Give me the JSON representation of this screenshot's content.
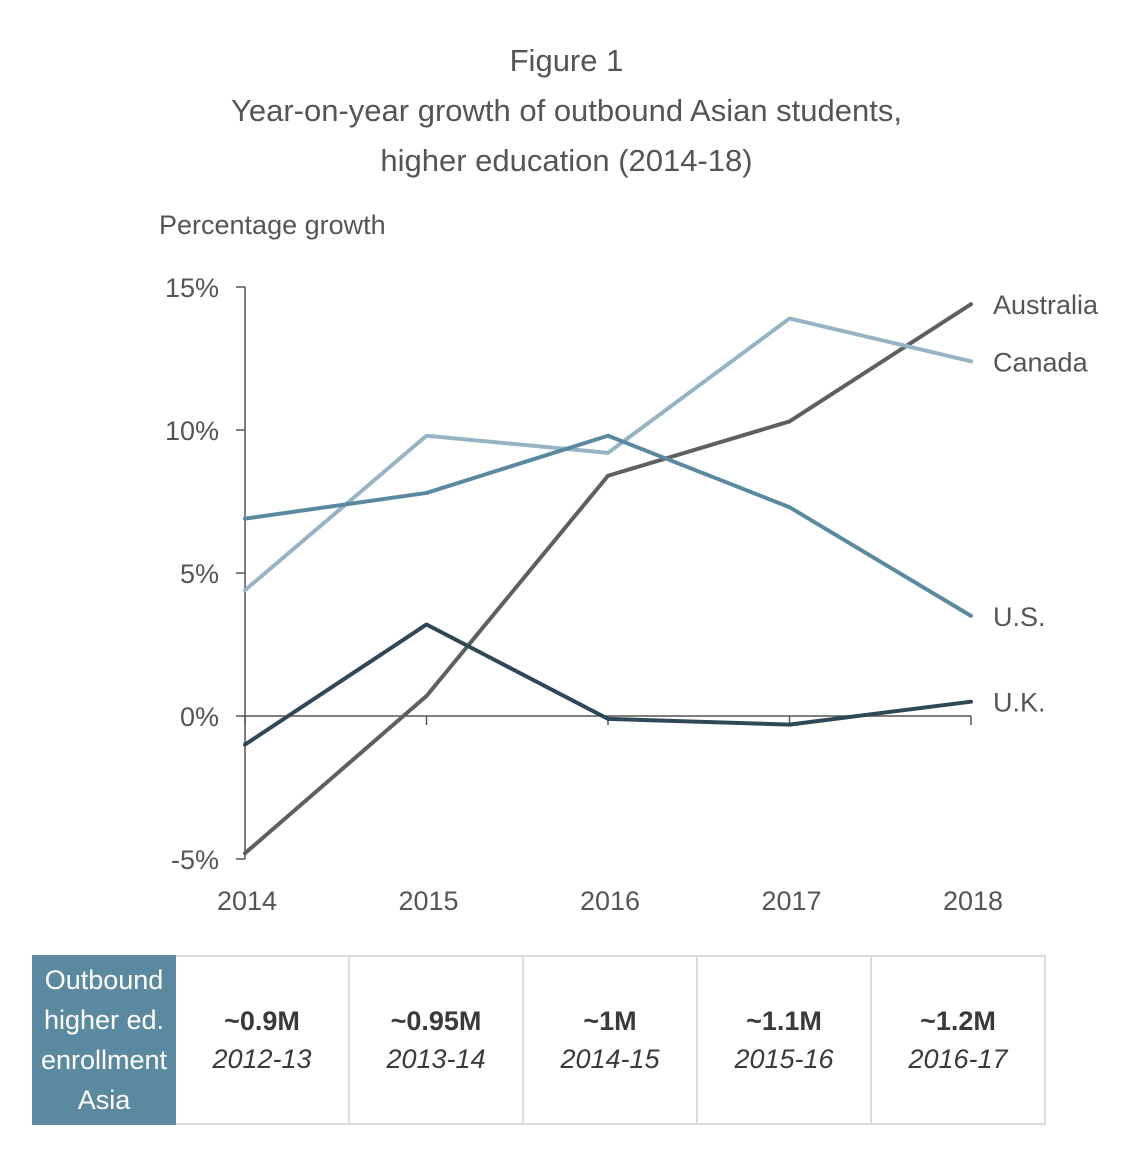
{
  "figure": {
    "label": "Figure 1",
    "title_line1": "Year-on-year growth of outbound Asian students,",
    "title_line2": "higher education (2014-18)"
  },
  "chart_data": {
    "type": "line",
    "title": "Year-on-year growth of outbound Asian students, higher education (2014-18)",
    "ylabel": "Percentage growth",
    "xlabel": "",
    "x": [
      "2014",
      "2015",
      "2016",
      "2017",
      "2018"
    ],
    "ylim": [
      -5,
      15
    ],
    "yticks": [
      -5,
      0,
      5,
      10,
      15
    ],
    "ytick_labels": [
      "-5%",
      "0%",
      "5%",
      "10%",
      "15%"
    ],
    "grid": false,
    "legend": "inline labels at right end of lines",
    "series": [
      {
        "name": "Australia",
        "values": [
          -4.8,
          0.7,
          8.4,
          10.3,
          14.4
        ],
        "color": "#5f5f5f"
      },
      {
        "name": "Canada",
        "values": [
          4.4,
          9.8,
          9.2,
          13.9,
          12.4
        ],
        "color": "#97b4c4"
      },
      {
        "name": "U.S.",
        "values": [
          6.9,
          7.8,
          9.8,
          7.3,
          3.5
        ],
        "color": "#5b8aa0"
      },
      {
        "name": "U.K.",
        "values": [
          -1.0,
          3.2,
          -0.1,
          -0.3,
          0.5
        ],
        "color": "#2f4858"
      }
    ]
  },
  "enrollment_table": {
    "header": "Outbound higher ed. enrollment Asia",
    "header_lines": [
      "Outbound",
      "higher ed.",
      "enrollment",
      "Asia"
    ],
    "cells": [
      {
        "amount": "~0.9M",
        "period": "2012-13"
      },
      {
        "amount": "~0.95M",
        "period": "2013-14"
      },
      {
        "amount": "~1M",
        "period": "2014-15"
      },
      {
        "amount": "~1.1M",
        "period": "2015-16"
      },
      {
        "amount": "~1.2M",
        "period": "2016-17"
      }
    ]
  }
}
